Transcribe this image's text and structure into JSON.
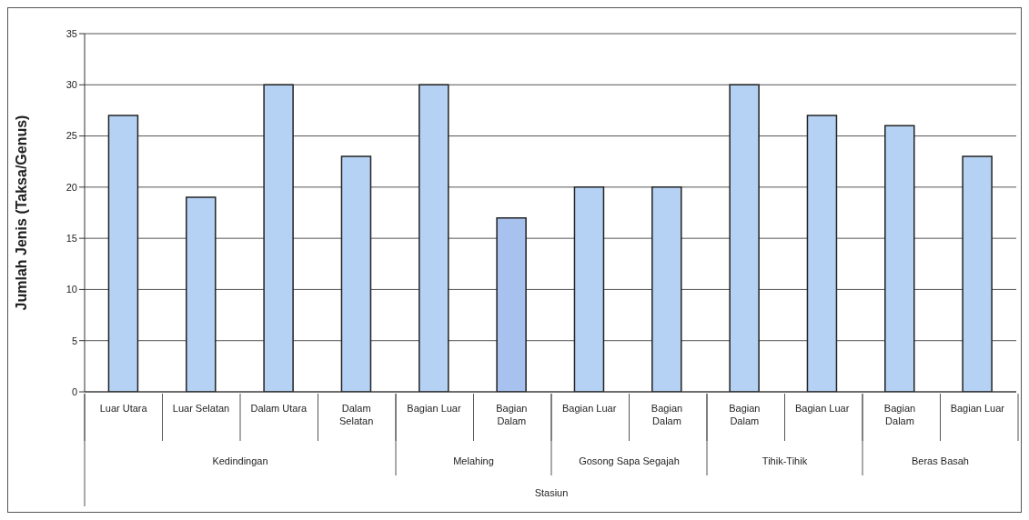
{
  "chart_data": {
    "type": "bar",
    "ylabel": "Jumlah Jenis (Taksa/Genus)",
    "categories": [
      "Luar Utara",
      "Luar Selatan",
      "Dalam Utara",
      "Dalam Selatan",
      "Bagian Luar",
      "Bagian Dalam",
      "Bagian Luar",
      "Bagian Dalam",
      "Bagian Dalam",
      "Bagian Luar",
      "Bagian Dalam",
      "Bagian Luar"
    ],
    "values": [
      27,
      19,
      30,
      23,
      30,
      17,
      20,
      20,
      30,
      27,
      26,
      23
    ],
    "colors": [
      "#b5d2f5",
      "#b5d2f5",
      "#b5d2f5",
      "#b5d2f5",
      "#b5d2f5",
      "#a8c2f0",
      "#b5d2f5",
      "#b5d2f5",
      "#b5d2f5",
      "#b5d2f5",
      "#b5d2f5",
      "#b5d2f5"
    ],
    "ylim": [
      0,
      35
    ],
    "yticks": [
      0,
      5,
      10,
      15,
      20,
      25,
      30,
      35
    ],
    "grid": "y",
    "annotations": [
      "Kedindingan",
      "Melahing",
      "Gosong Sapa Segajah",
      "Tihik-Tihik",
      "Beras Basah",
      "Stasiun"
    ]
  }
}
